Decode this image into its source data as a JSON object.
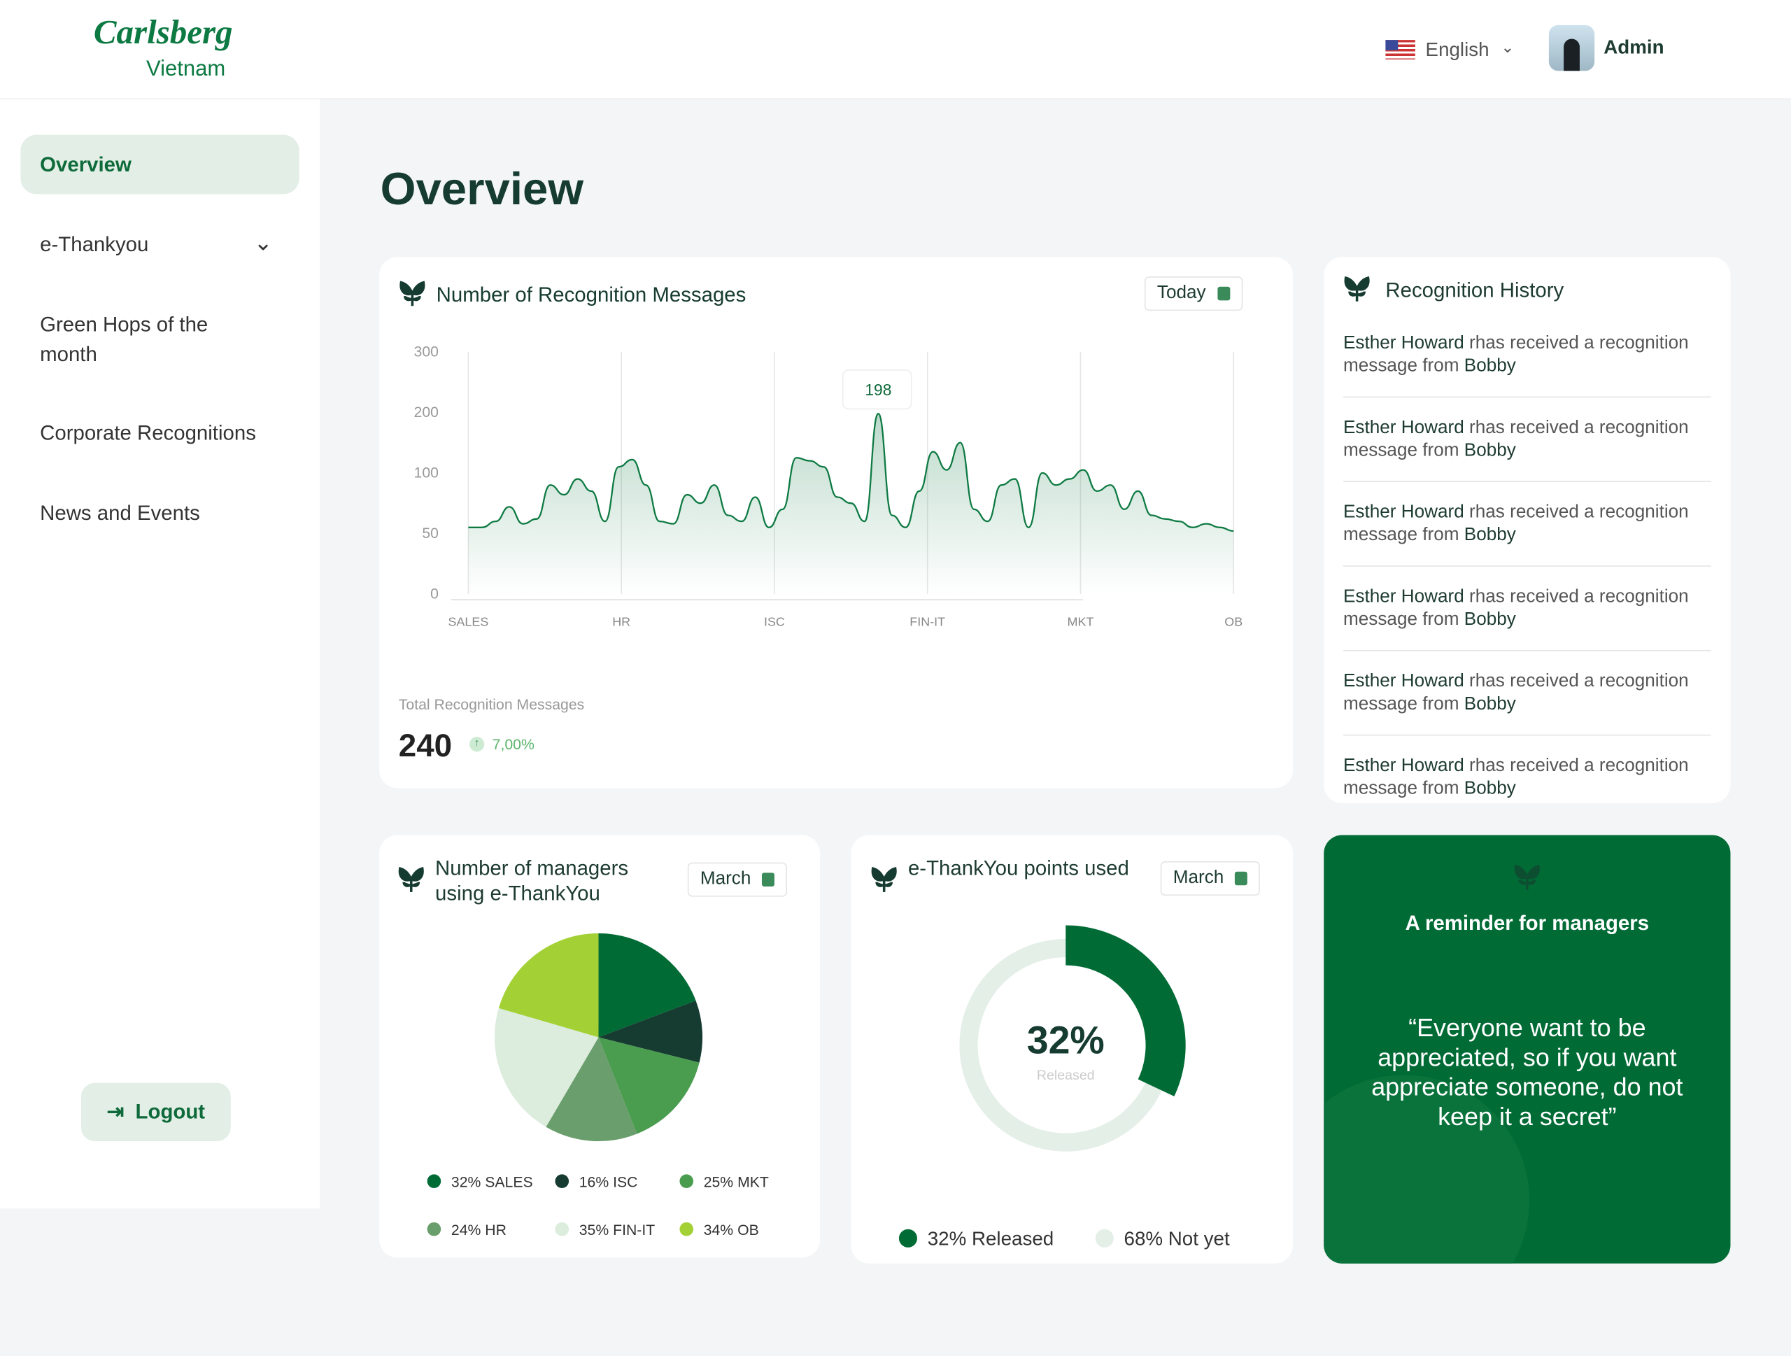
{
  "header": {
    "logo_brand": "Carlsberg",
    "logo_sub": "Vietnam",
    "language": "English",
    "user": "Admin"
  },
  "sidebar": {
    "items": [
      "Overview",
      "e-Thankyou",
      "Green Hops of the month",
      "Corporate Recognitions",
      "News and Events"
    ],
    "logout": "Logout"
  },
  "page_title": "Overview",
  "recognition_chart": {
    "type": "line",
    "title": "Number of Recognition Messages",
    "filter": "Today",
    "x_labels": [
      "SALES",
      "HR",
      "ISC",
      "FIN-IT",
      "MKT",
      "OB"
    ],
    "values": [
      55,
      55,
      60,
      72,
      58,
      62,
      90,
      82,
      95,
      85,
      60,
      110,
      122,
      90,
      60,
      58,
      82,
      75,
      90,
      65,
      60,
      80,
      55,
      70,
      125,
      120,
      110,
      80,
      75,
      60,
      198,
      65,
      55,
      85,
      135,
      105,
      150,
      70,
      60,
      90,
      95,
      55,
      100,
      90,
      95,
      105,
      85,
      90,
      70,
      85,
      65,
      62,
      60,
      55,
      58,
      55,
      52
    ],
    "ylim": [
      0,
      300
    ],
    "yticks": [
      0,
      50,
      100,
      200,
      300
    ],
    "color": "#0e7a43",
    "grid": true,
    "total_label": "Total Recognition Messages",
    "total": 240,
    "change": "7,00%"
  },
  "history": {
    "title": "Recognition History",
    "items": [
      {
        "name": "Esther Howard",
        "text": "rhas received a recognition message from",
        "sender": "Bobby"
      },
      {
        "name": "Esther Howard",
        "text": "rhas received a recognition message from",
        "sender": "Bobby"
      },
      {
        "name": "Esther Howard",
        "text": "rhas received a recognition message from",
        "sender": "Bobby"
      },
      {
        "name": "Esther Howard",
        "text": "rhas received a recognition message from",
        "sender": "Bobby"
      },
      {
        "name": "Esther Howard",
        "text": "rhas received a recognition message from",
        "sender": "Bobby"
      },
      {
        "name": "Esther Howard",
        "text": "rhas received a recognition message from",
        "sender": "Bobby"
      }
    ]
  },
  "managers_chart": {
    "type": "pie",
    "title": "Number of managers using e-ThankYou",
    "filter": "March",
    "categories": [
      "SALES",
      "ISC",
      "MKT",
      "HR",
      "FIN-IT",
      "OB"
    ],
    "values": [
      32,
      16,
      25,
      24,
      35,
      34
    ],
    "value_labels": [
      "32% SALES",
      "16% ISC",
      "25% MKT",
      "24% HR",
      "35% FIN-IT",
      "34% OB"
    ],
    "colors": [
      "#006b35",
      "#163b30",
      "#4a9c4f",
      "#6a9e6c",
      "#dcecdd",
      "#a3d135"
    ]
  },
  "points_chart": {
    "type": "donut",
    "title": "e-ThankYou points used",
    "filter": "March",
    "center_text": "32%",
    "center_caption": "Released",
    "values": [
      32,
      68
    ],
    "value_labels": [
      "32% Released",
      "68% Not yet"
    ],
    "colors": [
      "#006b35",
      "#e4efe8"
    ]
  },
  "reminder": {
    "title": "A reminder for managers",
    "quote": "“Everyone want to be appreciated, so if you want appreciate someone, do not keep it a secret”"
  }
}
